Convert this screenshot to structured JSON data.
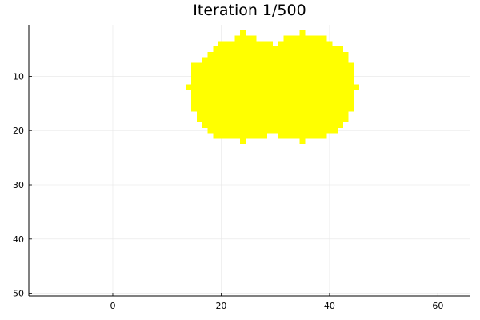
{
  "chart_data": {
    "type": "heatmap",
    "title": "Iteration 1/500",
    "xlabel": "",
    "ylabel": "",
    "xlim": [
      -15.5,
      66
    ],
    "ylim": [
      50.5,
      0.5
    ],
    "y_reversed": true,
    "x_ticks": [
      0,
      20,
      40,
      60
    ],
    "y_ticks": [
      10,
      20,
      30,
      40,
      50
    ],
    "grid": true,
    "legend": "none",
    "fill_color": "#ffff00",
    "cells_note": "row y -> list of filled x spans [start, end] in grid units",
    "rows": [
      {
        "y": 2,
        "spans": [
          [
            24,
            24
          ],
          [
            35,
            35
          ]
        ]
      },
      {
        "y": 3,
        "spans": [
          [
            23,
            26
          ],
          [
            32,
            39
          ]
        ]
      },
      {
        "y": 4,
        "spans": [
          [
            20,
            29
          ],
          [
            31,
            40
          ]
        ]
      },
      {
        "y": 5,
        "spans": [
          [
            19,
            42
          ]
        ]
      },
      {
        "y": 6,
        "spans": [
          [
            18,
            43
          ]
        ]
      },
      {
        "y": 7,
        "spans": [
          [
            17,
            43
          ]
        ]
      },
      {
        "y": 8,
        "spans": [
          [
            15,
            44
          ]
        ]
      },
      {
        "y": 9,
        "spans": [
          [
            15,
            44
          ]
        ]
      },
      {
        "y": 10,
        "spans": [
          [
            15,
            44
          ]
        ]
      },
      {
        "y": 11,
        "spans": [
          [
            15,
            44
          ]
        ]
      },
      {
        "y": 12,
        "spans": [
          [
            14,
            45
          ]
        ]
      },
      {
        "y": 13,
        "spans": [
          [
            15,
            44
          ]
        ]
      },
      {
        "y": 14,
        "spans": [
          [
            15,
            44
          ]
        ]
      },
      {
        "y": 15,
        "spans": [
          [
            15,
            44
          ]
        ]
      },
      {
        "y": 16,
        "spans": [
          [
            15,
            44
          ]
        ]
      },
      {
        "y": 17,
        "spans": [
          [
            16,
            43
          ]
        ]
      },
      {
        "y": 18,
        "spans": [
          [
            16,
            43
          ]
        ]
      },
      {
        "y": 19,
        "spans": [
          [
            17,
            42
          ]
        ]
      },
      {
        "y": 20,
        "spans": [
          [
            18,
            41
          ]
        ]
      },
      {
        "y": 21,
        "spans": [
          [
            19,
            28
          ],
          [
            31,
            39
          ]
        ]
      },
      {
        "y": 22,
        "spans": [
          [
            24,
            24
          ],
          [
            35,
            35
          ]
        ]
      }
    ]
  },
  "colors": {
    "background": "#ffffff",
    "axis": "#000000",
    "grid": "#e6e6e6",
    "fill": "#ffff00"
  }
}
